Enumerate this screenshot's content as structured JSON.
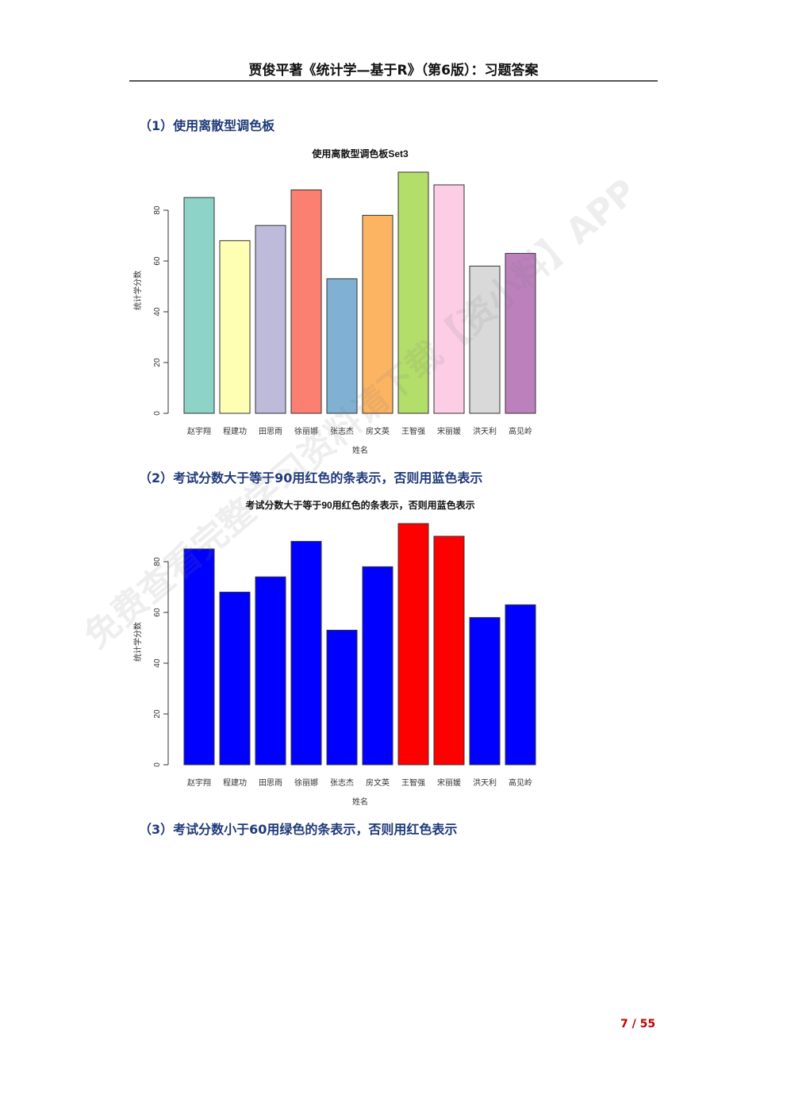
{
  "header": {
    "title": "贾俊平著《统计学—基于R》（第6版）：习题答案"
  },
  "sections": [
    {
      "number": "（1）",
      "title": "使用离散型调色板"
    },
    {
      "number": "（2）",
      "title": "考试分数大于等于90用红色的条表示，否则用蓝色表示"
    },
    {
      "number": "（3）",
      "title": "考试分数小于60用绿色的条表示，否则用红色表示"
    }
  ],
  "chart_data": [
    {
      "type": "bar",
      "title": "使用离散型调色板Set3",
      "xlabel": "姓名",
      "ylabel": "统计学分数",
      "categories": [
        "赵宇翔",
        "程建功",
        "田思雨",
        "徐丽娜",
        "张志杰",
        "房文英",
        "王智强",
        "宋丽媛",
        "洪天利",
        "高见岭"
      ],
      "values": [
        85,
        68,
        74,
        88,
        53,
        78,
        95,
        90,
        58,
        63
      ],
      "yticks": [
        0,
        20,
        40,
        60,
        80
      ],
      "ylim": [
        0,
        95
      ],
      "colors": [
        "#8DD3C7",
        "#FFFFB3",
        "#BEBADA",
        "#FB8072",
        "#80B1D3",
        "#FDB462",
        "#B3DE69",
        "#FCCDE5",
        "#D9D9D9",
        "#BC80BD"
      ]
    },
    {
      "type": "bar",
      "title": "考试分数大于等于90用红色的条表示，否则用蓝色表示",
      "xlabel": "姓名",
      "ylabel": "统计学分数",
      "categories": [
        "赵宇翔",
        "程建功",
        "田思雨",
        "徐丽娜",
        "张志杰",
        "房文英",
        "王智强",
        "宋丽媛",
        "洪天利",
        "高见岭"
      ],
      "values": [
        85,
        68,
        74,
        88,
        53,
        78,
        95,
        90,
        58,
        63
      ],
      "yticks": [
        0,
        20,
        40,
        60,
        80
      ],
      "ylim": [
        0,
        95
      ],
      "colors": [
        "#0000FF",
        "#0000FF",
        "#0000FF",
        "#0000FF",
        "#0000FF",
        "#0000FF",
        "#FF0000",
        "#FF0000",
        "#0000FF",
        "#0000FF"
      ]
    }
  ],
  "footer": {
    "page": "7",
    "separator": "/",
    "total": "55"
  },
  "watermark": "免费查看完整学习资料请下载【资小料】APP"
}
